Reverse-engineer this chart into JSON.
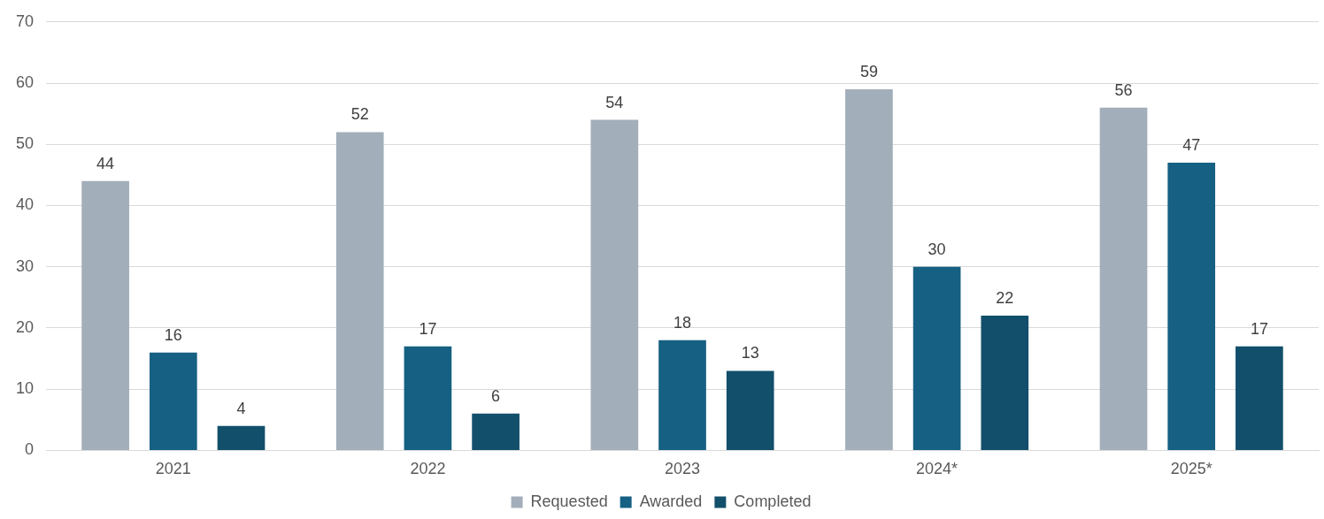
{
  "chart_data": {
    "type": "bar",
    "categories": [
      "2021",
      "2022",
      "2023",
      "2024*",
      "2025*"
    ],
    "series": [
      {
        "name": "Requested",
        "color": "#a2aeb9",
        "values": [
          44,
          52,
          54,
          59,
          56
        ]
      },
      {
        "name": "Awarded",
        "color": "#166083",
        "values": [
          16,
          17,
          18,
          30,
          47
        ]
      },
      {
        "name": "Completed",
        "color": "#124f6b",
        "values": [
          4,
          6,
          13,
          22,
          17
        ]
      }
    ],
    "ylim": [
      0,
      70
    ],
    "yticks": [
      0,
      10,
      20,
      30,
      40,
      50,
      60,
      70
    ],
    "grid": "y",
    "legend": "bottom",
    "data_labels": true
  }
}
